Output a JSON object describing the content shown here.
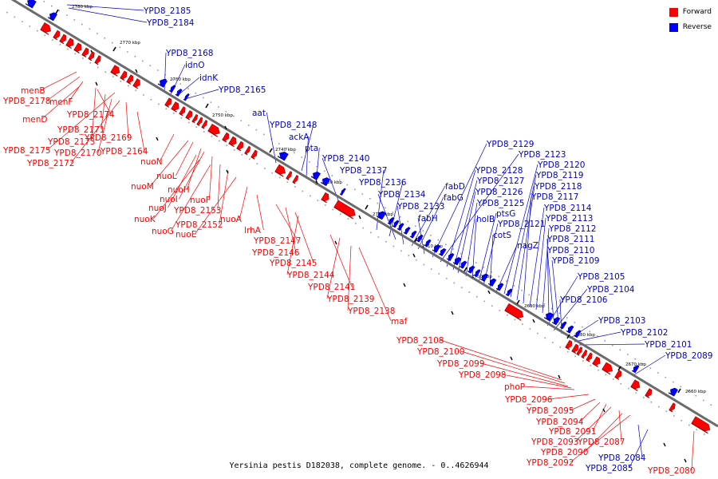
{
  "legend": {
    "forward_label": "Forward",
    "reverse_label": "Reverse",
    "forward_color": "#ff0000",
    "reverse_color": "#0000ff"
  },
  "colors": {
    "forward_label": "#ff0000",
    "reverse_label": "#0000cc",
    "backbone": "#6b6b6b"
  },
  "caption": "Yersinia pestis D182038, complete genome. - 0..4626944",
  "ticks": [
    "2780 kbp",
    "2770 kbp",
    "2760 kbp",
    "2750 kbp",
    "2740 kbp",
    "2730 kbp",
    "2720 kbp",
    "2710 kbp",
    "2700 kbp",
    "2690 kbp",
    "2680 kbp",
    "2670 kbp",
    "2660 kbp"
  ],
  "forward_genes": [
    "menB",
    "YPD8_2178",
    "menF",
    "menD",
    "YPD8_2174",
    "YPD8_2171",
    "YPD8_2173",
    "YPD8_2175",
    "YPD8_2169",
    "YPD8_2170",
    "YPD8_2172",
    "YPD8_2164",
    "nuoN",
    "nuoM",
    "nuoL",
    "nuoH",
    "nuoI",
    "nuoF",
    "nuoJ",
    "YPD8_2153",
    "nuoK",
    "YPD8_2152",
    "nuoG",
    "nuoE",
    "nuoA",
    "lrhA",
    "YPD8_2147",
    "YPD8_2146",
    "YPD8_2145",
    "YPD8_2144",
    "YPD8_2141",
    "YPD8_2139",
    "YPD8_2138",
    "maf",
    "YPD8_2108",
    "YPD8_2100",
    "YPD8_2099",
    "YPD8_2098",
    "phoP",
    "YPD8_2096",
    "YPD8_2095",
    "YPD8_2094",
    "YPD8_2091",
    "YPD8_2093",
    "YPD8_2087",
    "YPD8_2090",
    "YPD8_2092",
    "YPD8_2080"
  ],
  "reverse_genes": [
    "YPD8_2185",
    "YPD8_2184",
    "YPD8_2168",
    "idnO",
    "idnK",
    "YPD8_2165",
    "aat",
    "YPD8_2148",
    "ackA",
    "pta",
    "YPD8_2140",
    "YPD8_2137",
    "YPD8_2136",
    "YPD8_2134",
    "YPD8_2133",
    "fabD",
    "fabG",
    "fabH",
    "YPD8_2129",
    "YPD8_2123",
    "YPD8_2128",
    "YPD8_2127",
    "YPD8_2126",
    "YPD8_2125",
    "holB",
    "ptsG",
    "YPD8_2121",
    "cotS",
    "nagZ",
    "YPD8_2120",
    "YPD8_2119",
    "YPD8_2118",
    "YPD8_2117",
    "YPD8_2114",
    "YPD8_2113",
    "YPD8_2112",
    "YPD8_2111",
    "YPD8_2110",
    "YPD8_2109",
    "YPD8_2105",
    "YPD8_2104",
    "YPD8_2106",
    "YPD8_2103",
    "YPD8_2102",
    "YPD8_2101",
    "YPD8_2089",
    "YPD8_2084",
    "YPD8_2085"
  ]
}
